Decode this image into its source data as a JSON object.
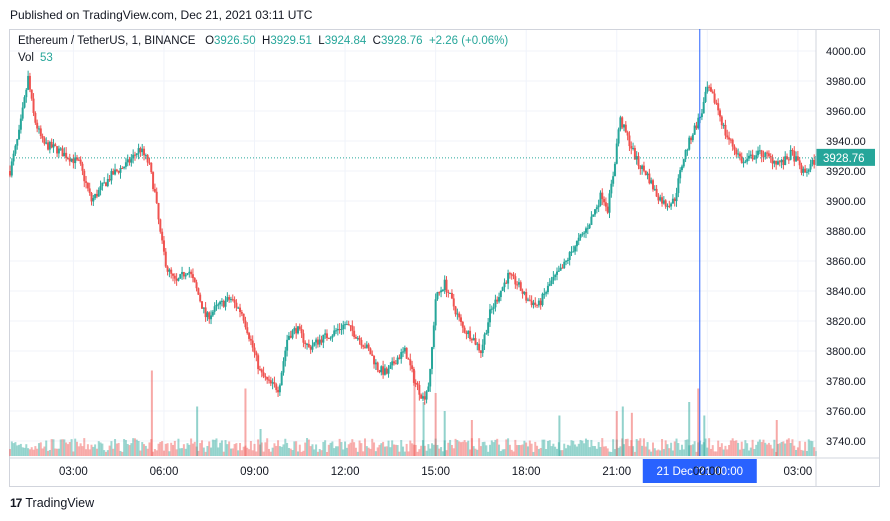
{
  "header": {
    "published": "Published on TradingView.com, Dec 21, 2021 03:11 UTC"
  },
  "legend": {
    "symbol": "Ethereum / TetherUS, 1, BINANCE",
    "o_label": "O",
    "o_value": "3926.50",
    "h_label": "H",
    "h_value": "3929.51",
    "l_label": "L",
    "l_value": "3924.84",
    "c_label": "C",
    "c_value": "3928.76",
    "change": "+2.26 (+0.06%)",
    "vol_label": "Vol",
    "vol_value": "53"
  },
  "footer": {
    "brand": "TradingView",
    "logo_glyph": "17"
  },
  "colors": {
    "up": "#26a69a",
    "down": "#ef5350",
    "crosshair": "#2962ff",
    "price_tag": "#26a69a"
  },
  "chart_data": {
    "type": "candlestick",
    "title": "Ethereum / TetherUS, 1, BINANCE",
    "interval": "1 minute",
    "ylim": [
      3730,
      4010
    ],
    "y_ticks": [
      "4000.00",
      "3980.00",
      "3960.00",
      "3940.00",
      "3920.00",
      "3900.00",
      "3880.00",
      "3860.00",
      "3840.00",
      "3820.00",
      "3800.00",
      "3780.00",
      "3760.00",
      "3740.00"
    ],
    "x_ticks": [
      "03:00",
      "06:00",
      "09:00",
      "12:00",
      "15:00",
      "18:00",
      "21:00",
      "00:00",
      "03:00"
    ],
    "x_tick_hours": [
      3,
      6,
      9,
      12,
      15,
      18,
      21,
      24,
      27
    ],
    "x_range_hours": [
      0.9,
      27.6
    ],
    "last_price": "3928.76",
    "crosshair_label": "21 Dec '21   00:00",
    "crosshair_hour": 23.75,
    "price_path": [
      [
        0.9,
        3920
      ],
      [
        1.2,
        3945
      ],
      [
        1.5,
        3982
      ],
      [
        1.7,
        3955
      ],
      [
        2.0,
        3938
      ],
      [
        2.4,
        3935
      ],
      [
        2.8,
        3930
      ],
      [
        3.2,
        3925
      ],
      [
        3.6,
        3900
      ],
      [
        3.9,
        3908
      ],
      [
        4.3,
        3918
      ],
      [
        4.8,
        3925
      ],
      [
        5.2,
        3935
      ],
      [
        5.5,
        3925
      ],
      [
        5.7,
        3905
      ],
      [
        5.9,
        3875
      ],
      [
        6.1,
        3855
      ],
      [
        6.4,
        3845
      ],
      [
        6.8,
        3855
      ],
      [
        7.1,
        3840
      ],
      [
        7.4,
        3822
      ],
      [
        7.8,
        3830
      ],
      [
        8.2,
        3835
      ],
      [
        8.6,
        3825
      ],
      [
        8.9,
        3805
      ],
      [
        9.2,
        3785
      ],
      [
        9.5,
        3778
      ],
      [
        9.8,
        3775
      ],
      [
        10.1,
        3810
      ],
      [
        10.4,
        3815
      ],
      [
        10.8,
        3802
      ],
      [
        11.2,
        3808
      ],
      [
        11.6,
        3812
      ],
      [
        12.0,
        3818
      ],
      [
        12.4,
        3810
      ],
      [
        12.8,
        3800
      ],
      [
        13.1,
        3788
      ],
      [
        13.4,
        3785
      ],
      [
        13.7,
        3795
      ],
      [
        14.0,
        3800
      ],
      [
        14.3,
        3780
      ],
      [
        14.6,
        3768
      ],
      [
        14.8,
        3780
      ],
      [
        15.0,
        3835
      ],
      [
        15.3,
        3845
      ],
      [
        15.6,
        3830
      ],
      [
        15.9,
        3815
      ],
      [
        16.2,
        3810
      ],
      [
        16.5,
        3800
      ],
      [
        16.8,
        3825
      ],
      [
        17.1,
        3838
      ],
      [
        17.4,
        3850
      ],
      [
        17.7,
        3845
      ],
      [
        18.0,
        3835
      ],
      [
        18.4,
        3830
      ],
      [
        18.8,
        3845
      ],
      [
        19.2,
        3855
      ],
      [
        19.6,
        3870
      ],
      [
        19.9,
        3878
      ],
      [
        20.2,
        3890
      ],
      [
        20.5,
        3905
      ],
      [
        20.7,
        3895
      ],
      [
        20.9,
        3920
      ],
      [
        21.1,
        3955
      ],
      [
        21.4,
        3940
      ],
      [
        21.7,
        3925
      ],
      [
        22.0,
        3918
      ],
      [
        22.3,
        3905
      ],
      [
        22.6,
        3898
      ],
      [
        22.9,
        3900
      ],
      [
        23.2,
        3928
      ],
      [
        23.5,
        3945
      ],
      [
        23.8,
        3958
      ],
      [
        24.0,
        3975
      ],
      [
        24.3,
        3965
      ],
      [
        24.6,
        3945
      ],
      [
        24.9,
        3935
      ],
      [
        25.2,
        3925
      ],
      [
        25.5,
        3930
      ],
      [
        25.8,
        3932
      ],
      [
        26.1,
        3928
      ],
      [
        26.5,
        3925
      ],
      [
        26.8,
        3932
      ],
      [
        27.2,
        3918
      ],
      [
        27.6,
        3928
      ]
    ],
    "volume_spikes": [
      [
        5.6,
        95
      ],
      [
        7.1,
        55
      ],
      [
        8.7,
        75
      ],
      [
        9.2,
        30
      ],
      [
        14.3,
        95
      ],
      [
        14.6,
        60
      ],
      [
        15.0,
        70
      ],
      [
        15.3,
        50
      ],
      [
        16.2,
        40
      ],
      [
        19.1,
        45
      ],
      [
        21.0,
        50
      ],
      [
        21.2,
        55
      ],
      [
        21.5,
        48
      ],
      [
        23.4,
        60
      ],
      [
        23.7,
        75
      ],
      [
        23.9,
        45
      ],
      [
        26.3,
        40
      ]
    ]
  }
}
